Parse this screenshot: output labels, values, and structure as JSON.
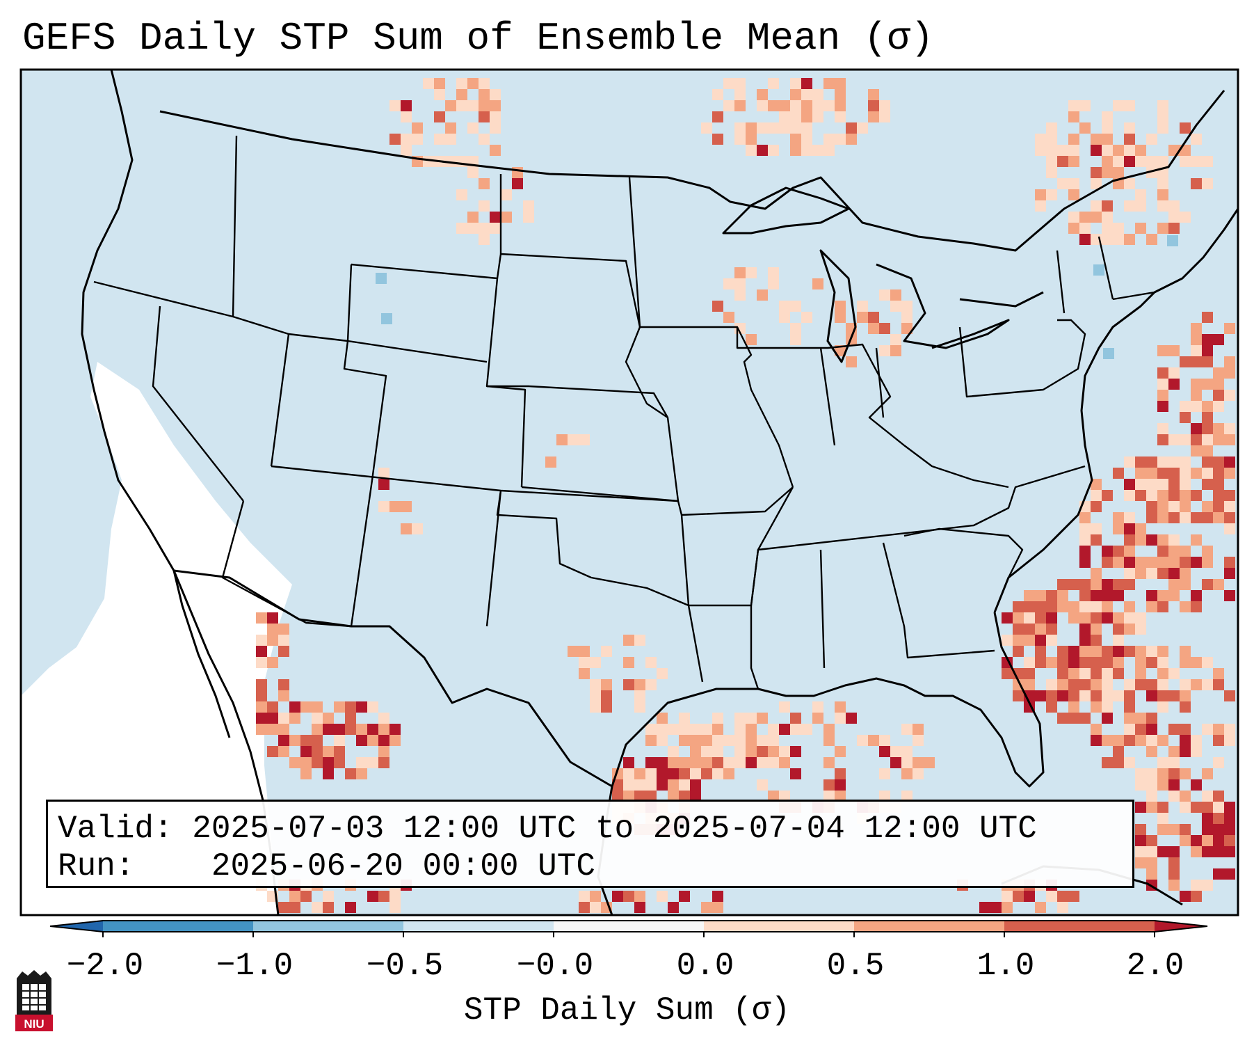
{
  "title": "GEFS Daily STP Sum of Ensemble Mean (σ)",
  "info": {
    "valid_label": "Valid:",
    "valid_value": "2025-07-03 12:00 UTC to 2025-07-04 12:00 UTC",
    "run_label": "Run:",
    "run_value": "2025-06-20 00:00 UTC"
  },
  "colorbar": {
    "label": "STP Daily Sum (σ)",
    "ticks": [
      "−2.0",
      "−1.0",
      "−0.5",
      "−0.0",
      "0.0",
      "0.5",
      "1.0",
      "2.0"
    ],
    "bins": [
      {
        "from": -2.0,
        "to": -1.0,
        "color": "#4393c3"
      },
      {
        "from": -1.0,
        "to": -0.5,
        "color": "#92c5de"
      },
      {
        "from": -0.5,
        "to": 0.0,
        "color": "#d1e5f0"
      },
      {
        "from": -0.0,
        "to": 0.0,
        "color": "#f7f7f7"
      },
      {
        "from": 0.0,
        "to": 0.5,
        "color": "#fddbc7"
      },
      {
        "from": 0.5,
        "to": 1.0,
        "color": "#f4a582"
      },
      {
        "from": 1.0,
        "to": 2.0,
        "color": "#d6604d"
      }
    ],
    "under_color": "#2166ac",
    "over_color": "#b2182b"
  },
  "colors": {
    "background": "#d1e5f0",
    "neutral": "#ffffff",
    "light_red": "#fddbc7",
    "mid_red": "#f4a582",
    "red": "#d6604d",
    "dark_red": "#b2182b",
    "light_blue": "#92c5de"
  },
  "logo_text": "NIU"
}
